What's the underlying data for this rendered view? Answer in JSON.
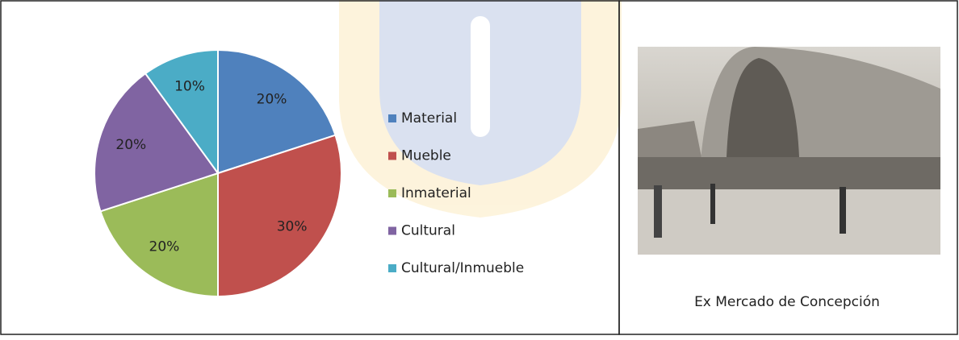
{
  "chart_data": {
    "type": "pie",
    "categories": [
      "Material",
      "Mueble",
      "Inmaterial",
      "Cultural",
      "Cultural/Inmueble"
    ],
    "values": [
      20,
      30,
      20,
      20,
      10
    ],
    "value_labels": [
      "20%",
      "30%",
      "20%",
      "20%",
      "10%"
    ],
    "colors": [
      "#4f81bd",
      "#c0504d",
      "#9bbb59",
      "#8064a2",
      "#4bacc6"
    ]
  },
  "caption": "Ex Mercado de Concepción"
}
